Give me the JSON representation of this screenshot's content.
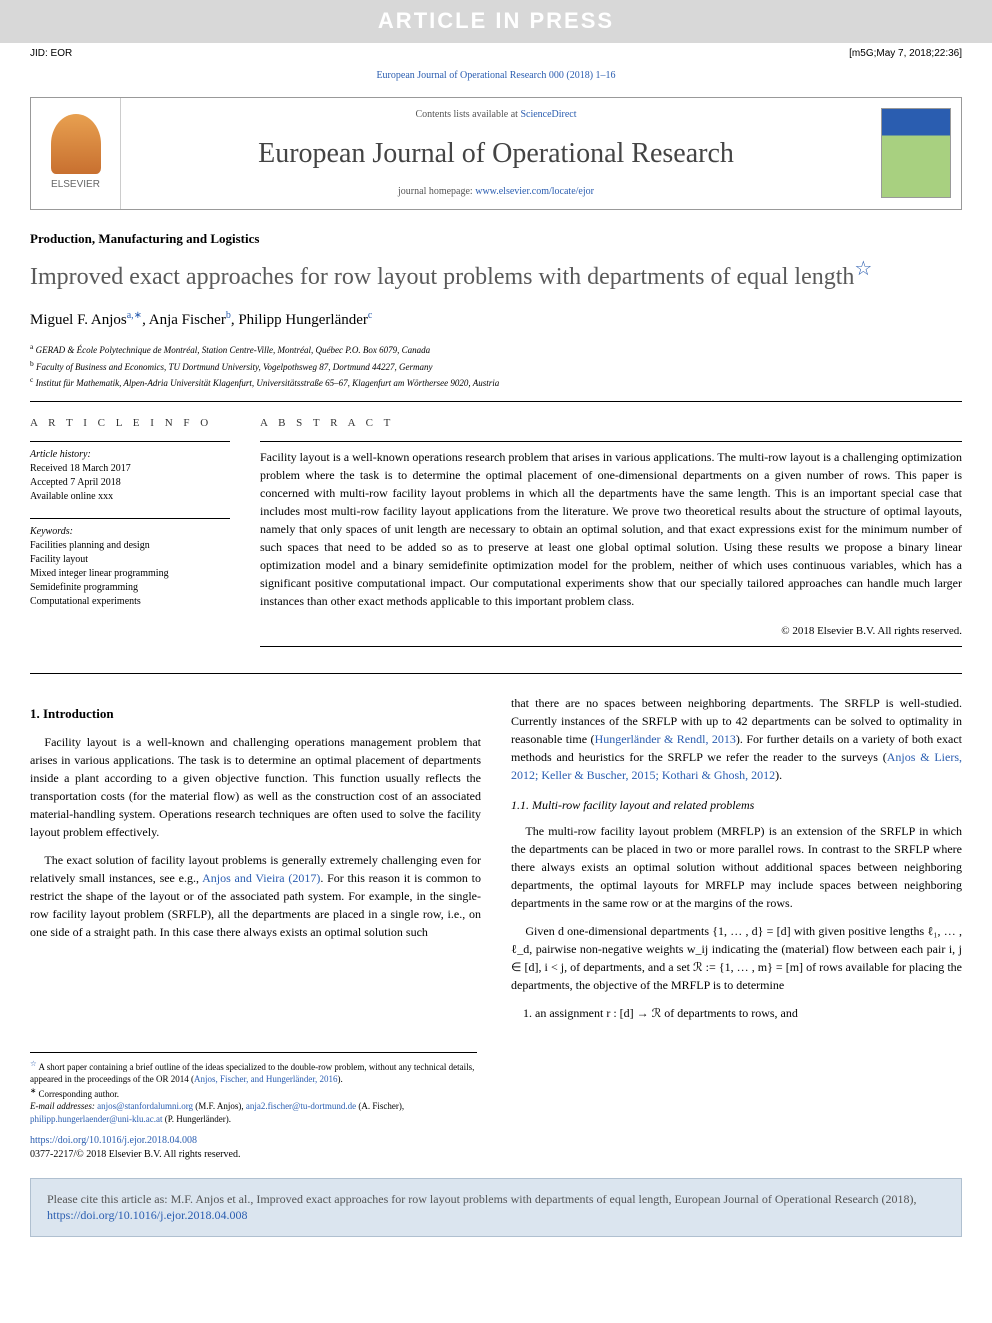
{
  "watermark": "ARTICLE IN PRESS",
  "jid_left": "JID: EOR",
  "jid_right": "[m5G;May 7, 2018;22:36]",
  "citation_top": "European Journal of Operational Research 000 (2018) 1–16",
  "masthead": {
    "contents_prefix": "Contents lists available at ",
    "contents_link": "ScienceDirect",
    "journal_name": "European Journal of Operational Research",
    "homepage_prefix": "journal homepage: ",
    "homepage_url": "www.elsevier.com/locate/ejor",
    "publisher_label": "ELSEVIER"
  },
  "article": {
    "section": "Production, Manufacturing and Logistics",
    "title": "Improved exact approaches for row layout problems with departments of equal length",
    "title_note_marker": "☆",
    "authors_html": "Miguel F. Anjos",
    "authors": [
      {
        "name": "Miguel F. Anjos",
        "marks": "a,∗"
      },
      {
        "name": "Anja Fischer",
        "marks": "b"
      },
      {
        "name": "Philipp Hungerländer",
        "marks": "c"
      }
    ],
    "affiliations": [
      {
        "mark": "a",
        "text": "GERAD & École Polytechnique de Montréal, Station Centre-Ville, Montréal, Québec P.O. Box 6079, Canada"
      },
      {
        "mark": "b",
        "text": "Faculty of Business and Economics, TU Dortmund University, Vogelpothsweg 87, Dortmund 44227, Germany"
      },
      {
        "mark": "c",
        "text": "Institut für Mathematik, Alpen-Adria Universität Klagenfurt, Universitätsstraße 65–67, Klagenfurt am Wörthersee 9020, Austria"
      }
    ]
  },
  "info": {
    "heading": "A R T I C L E   I N F O",
    "history_label": "Article history:",
    "received": "Received 18 March 2017",
    "accepted": "Accepted 7 April 2018",
    "online": "Available online xxx",
    "keywords_label": "Keywords:",
    "keywords": [
      "Facilities planning and design",
      "Facility layout",
      "Mixed integer linear programming",
      "Semidefinite programming",
      "Computational experiments"
    ]
  },
  "abstract": {
    "heading": "A B S T R A C T",
    "text": "Facility layout is a well-known operations research problem that arises in various applications. The multi-row layout is a challenging optimization problem where the task is to determine the optimal placement of one-dimensional departments on a given number of rows. This paper is concerned with multi-row facility layout problems in which all the departments have the same length. This is an important special case that includes most multi-row facility layout applications from the literature. We prove two theoretical results about the structure of optimal layouts, namely that only spaces of unit length are necessary to obtain an optimal solution, and that exact expressions exist for the minimum number of such spaces that need to be added so as to preserve at least one global optimal solution. Using these results we propose a binary linear optimization model and a binary semidefinite optimization model for the problem, neither of which uses continuous variables, which has a significant positive computational impact. Our computational experiments show that our specially tailored approaches can handle much larger instances than other exact methods applicable to this important problem class.",
    "copyright": "© 2018 Elsevier B.V. All rights reserved."
  },
  "body": {
    "intro_heading": "1. Introduction",
    "p1": "Facility layout is a well-known and challenging operations management problem that arises in various applications. The task is to determine an optimal placement of departments inside a plant according to a given objective function. This function usually reflects the transportation costs (for the material flow) as well as the construction cost of an associated material-handling system. Operations research techniques are often used to solve the facility layout problem effectively.",
    "p2a": "The exact solution of facility layout problems is generally extremely challenging even for relatively small instances, see e.g., ",
    "p2_cite": "Anjos and Vieira (2017)",
    "p2b": ". For this reason it is common to restrict the shape of the layout or of the associated path system. For example, in the single-row facility layout problem (SRFLP), all the departments are placed in a single row, i.e., on one side of a straight path. In this case there always exists an optimal solution such",
    "p3a": "that there are no spaces between neighboring departments. The SRFLP is well-studied. Currently instances of the SRFLP with up to 42 departments can be solved to optimality in reasonable time (",
    "p3_cite1": "Hungerländer & Rendl, 2013",
    "p3b": "). For further details on a variety of both exact methods and heuristics for the SRFLP we refer the reader to the surveys (",
    "p3_cite2": "Anjos & Liers, 2012; Keller & Buscher, 2015; Kothari & Ghosh, 2012",
    "p3c": ").",
    "sub_heading": "1.1. Multi-row facility layout and related problems",
    "p4": "The multi-row facility layout problem (MRFLP) is an extension of the SRFLP in which the departments can be placed in two or more parallel rows. In contrast to the SRFLP where there always exists an optimal solution without additional spaces between neighboring departments, the optimal layouts for MRFLP may include spaces between neighboring departments in the same row or at the margins of the rows.",
    "p5": "Given d one-dimensional departments {1, … , d} = [d] with given positive lengths ℓ₁, … , ℓ_d, pairwise non-negative weights w_ij indicating the (material) flow between each pair i, j ∈ [d], i < j, of departments, and a set ℛ := {1, … , m} = [m] of rows available for placing the departments, the objective of the MRFLP is to determine",
    "list1": "1. an assignment r : [d] → ℛ of departments to rows, and"
  },
  "footnotes": {
    "star_note": "A short paper containing a brief outline of the ideas specialized to the double-row problem, without any technical details, appeared in the proceedings of the OR 2014 (",
    "star_cite": "Anjos, Fischer, and Hungerländer, 2016",
    "star_note_end": ").",
    "corr": "Corresponding author.",
    "email_label": "E-mail addresses:",
    "emails": [
      {
        "addr": "anjos@stanfordalumni.org",
        "who": "(M.F. Anjos)"
      },
      {
        "addr": "anja2.fischer@tu-dortmund.de",
        "who": "(A. Fischer)"
      },
      {
        "addr": "philipp.hungerlaender@uni-klu.ac.at",
        "who": "(P. Hungerländer)"
      }
    ]
  },
  "doi": {
    "url": "https://doi.org/10.1016/j.ejor.2018.04.008",
    "issn_line": "0377-2217/© 2018 Elsevier B.V. All rights reserved."
  },
  "cite_box": {
    "prefix": "Please cite this article as: M.F. Anjos et al., Improved exact approaches for row layout problems with departments of equal length, European Journal of Operational Research (2018), ",
    "url": "https://doi.org/10.1016/j.ejor.2018.04.008"
  },
  "colors": {
    "link": "#2a5db0",
    "watermark_bg": "#d8d8d8",
    "cite_box_bg": "#dbe5ef",
    "title_gray": "#5a5a5a"
  }
}
